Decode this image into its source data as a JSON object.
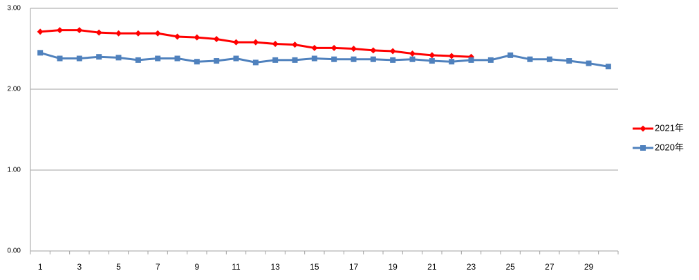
{
  "chart_data": {
    "type": "line",
    "categories": [
      "1",
      null,
      "3",
      null,
      "5",
      null,
      "7",
      null,
      "9",
      null,
      "11",
      null,
      "13",
      null,
      "15",
      null,
      "17",
      null,
      "19",
      null,
      "21",
      null,
      "23",
      null,
      "25",
      null,
      "27",
      null,
      "29",
      null
    ],
    "series": [
      {
        "name": "2021年",
        "color": "#ff0000",
        "marker": "diamond",
        "values": [
          2.71,
          2.73,
          2.73,
          2.7,
          2.69,
          2.69,
          2.69,
          2.65,
          2.64,
          2.62,
          2.58,
          2.58,
          2.56,
          2.55,
          2.51,
          2.51,
          2.5,
          2.48,
          2.47,
          2.44,
          2.42,
          2.41,
          2.4,
          null,
          null,
          null,
          null,
          null,
          null,
          null
        ]
      },
      {
        "name": "2020年",
        "color": "#4f81bd",
        "marker": "square",
        "values": [
          2.45,
          2.38,
          2.38,
          2.4,
          2.39,
          2.36,
          2.38,
          2.38,
          2.34,
          2.35,
          2.38,
          2.33,
          2.36,
          2.36,
          2.38,
          2.37,
          2.37,
          2.37,
          2.36,
          2.37,
          2.35,
          2.34,
          2.36,
          2.36,
          2.42,
          2.37,
          2.37,
          2.35,
          2.32,
          2.28
        ]
      }
    ],
    "ylim": [
      0,
      3
    ],
    "yticks": [
      {
        "value": 0,
        "label": "0.00"
      },
      {
        "value": 1,
        "label": "1.00"
      },
      {
        "value": 2,
        "label": "2.00"
      },
      {
        "value": 3,
        "label": "3.00"
      }
    ],
    "grid": true,
    "legend": "right"
  }
}
